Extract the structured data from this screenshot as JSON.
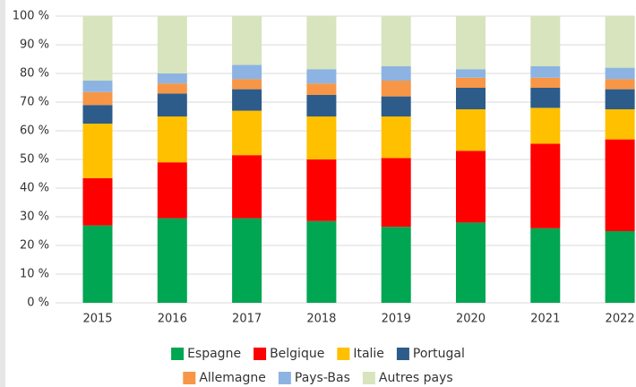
{
  "chart_data": {
    "type": "stacked_bar",
    "categories": [
      "2015",
      "2016",
      "2017",
      "2018",
      "2019",
      "2020",
      "2021",
      "2022"
    ],
    "series": [
      {
        "name": "Espagne",
        "color": "#00a651",
        "values": [
          27,
          29.5,
          29.5,
          28.5,
          26.5,
          28,
          26,
          25
        ]
      },
      {
        "name": "Belgique",
        "color": "#ff0000",
        "values": [
          16.5,
          19.5,
          22,
          21.5,
          24,
          25,
          29.5,
          32
        ]
      },
      {
        "name": "Italie",
        "color": "#ffc000",
        "values": [
          19,
          16,
          15.5,
          15,
          14.5,
          14.5,
          12.5,
          10.5
        ]
      },
      {
        "name": "Portugal",
        "color": "#2e5c8a",
        "values": [
          6.5,
          8,
          7.5,
          7.5,
          7,
          7.5,
          7,
          7
        ]
      },
      {
        "name": "Allemagne",
        "color": "#f79646",
        "values": [
          4.5,
          3.5,
          3.5,
          4,
          5.5,
          3.5,
          3.5,
          3.5
        ]
      },
      {
        "name": "Pays-Bas",
        "color": "#8db3e2",
        "values": [
          4,
          3.5,
          5,
          5,
          5,
          3,
          4,
          4
        ]
      },
      {
        "name": "Autres pays",
        "color": "#d7e4bd",
        "values": [
          22.5,
          20,
          17,
          18.5,
          17.5,
          18.5,
          17.5,
          18
        ]
      }
    ],
    "ylim": [
      0,
      100
    ],
    "yticks": [
      {
        "value": 0,
        "label": "0 %"
      },
      {
        "value": 10,
        "label": "10 %"
      },
      {
        "value": 20,
        "label": "20 %"
      },
      {
        "value": 30,
        "label": "30 %"
      },
      {
        "value": 40,
        "label": "40 %"
      },
      {
        "value": 50,
        "label": "50 %"
      },
      {
        "value": 60,
        "label": "60 %"
      },
      {
        "value": 70,
        "label": "70 %"
      },
      {
        "value": 80,
        "label": "80 %"
      },
      {
        "value": 90,
        "label": "90 %"
      },
      {
        "value": 100,
        "label": "100 %"
      }
    ],
    "grid": true
  }
}
